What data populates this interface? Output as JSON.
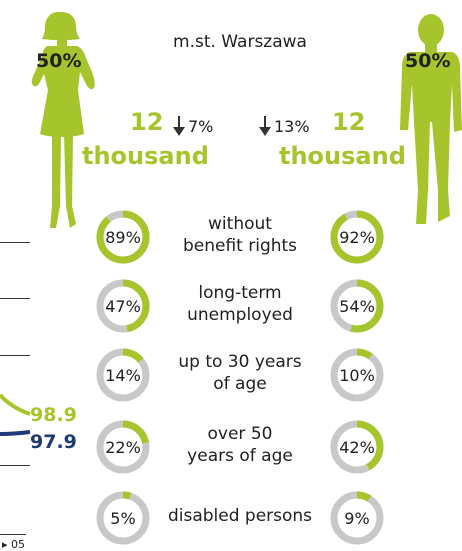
{
  "region": "m.st. Warszawa",
  "colors": {
    "accent": "#a6c52c",
    "navy": "#1f3a7a",
    "ring_bg": "#c8c8c8"
  },
  "female": {
    "share": "50%",
    "count": "12",
    "unit": "thousand",
    "change": "7%",
    "change_direction": "down",
    "icon": "woman-silhouette-icon"
  },
  "male": {
    "share": "50%",
    "count": "12",
    "unit": "thousand",
    "change": "13%",
    "change_direction": "down",
    "icon": "man-silhouette-icon"
  },
  "rows": [
    {
      "label_line1": "without",
      "label_line2": "benefit rights",
      "female_pct": "89%",
      "female_value": 89,
      "male_pct": "92%",
      "male_value": 92
    },
    {
      "label_line1": "long-term",
      "label_line2": "unemployed",
      "female_pct": "47%",
      "female_value": 47,
      "male_pct": "54%",
      "male_value": 54
    },
    {
      "label_line1": "up to 30 years",
      "label_line2": "of age",
      "female_pct": "14%",
      "female_value": 14,
      "male_pct": "10%",
      "male_value": 10
    },
    {
      "label_line1": "over 50",
      "label_line2": "years of age",
      "female_pct": "22%",
      "female_value": 22,
      "male_pct": "42%",
      "male_value": 42
    },
    {
      "label_line1": "disabled persons",
      "label_line2": "",
      "female_pct": "5%",
      "female_value": 5,
      "male_pct": "9%",
      "male_value": 9
    }
  ],
  "left_chart": {
    "value_green": "98.9",
    "value_navy": "97.9",
    "tick": "05"
  }
}
